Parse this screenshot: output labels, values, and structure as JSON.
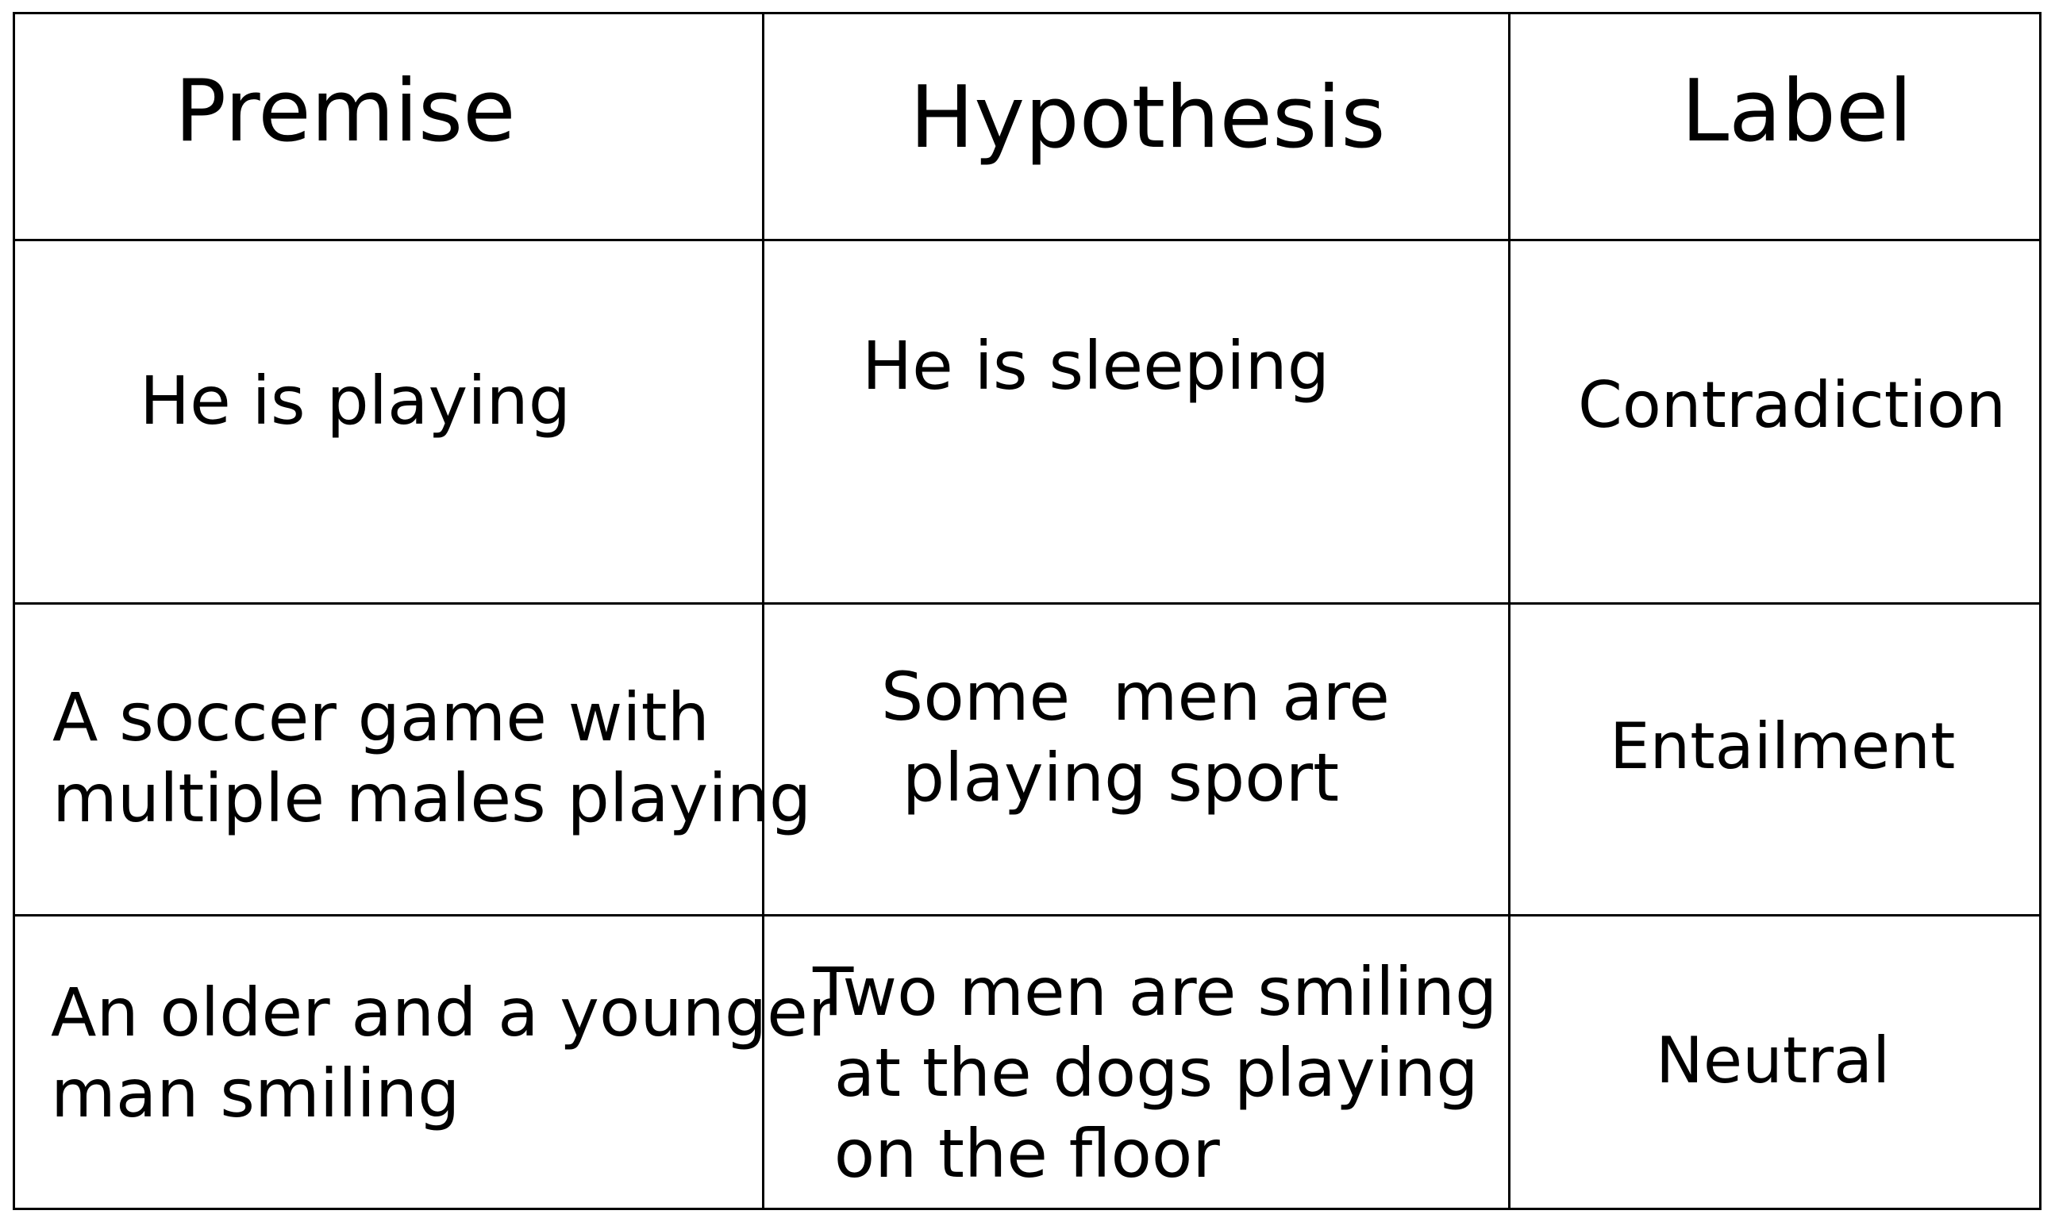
{
  "table": {
    "headers": {
      "premise": "Premise",
      "hypothesis": "Hypothesis",
      "label": "Label"
    },
    "rows": [
      {
        "premise": "He is playing",
        "hypothesis": "He is sleeping",
        "label": "Contradiction"
      },
      {
        "premise": "A soccer game with\nmultiple males playing",
        "hypothesis": "Some  men are\n playing sport",
        "label": "Entailment"
      },
      {
        "premise": "An older and a younger\nman smiling",
        "hypothesis": "Two men are smiling\n at the dogs playing\n on the floor",
        "label": "Neutral"
      }
    ]
  }
}
